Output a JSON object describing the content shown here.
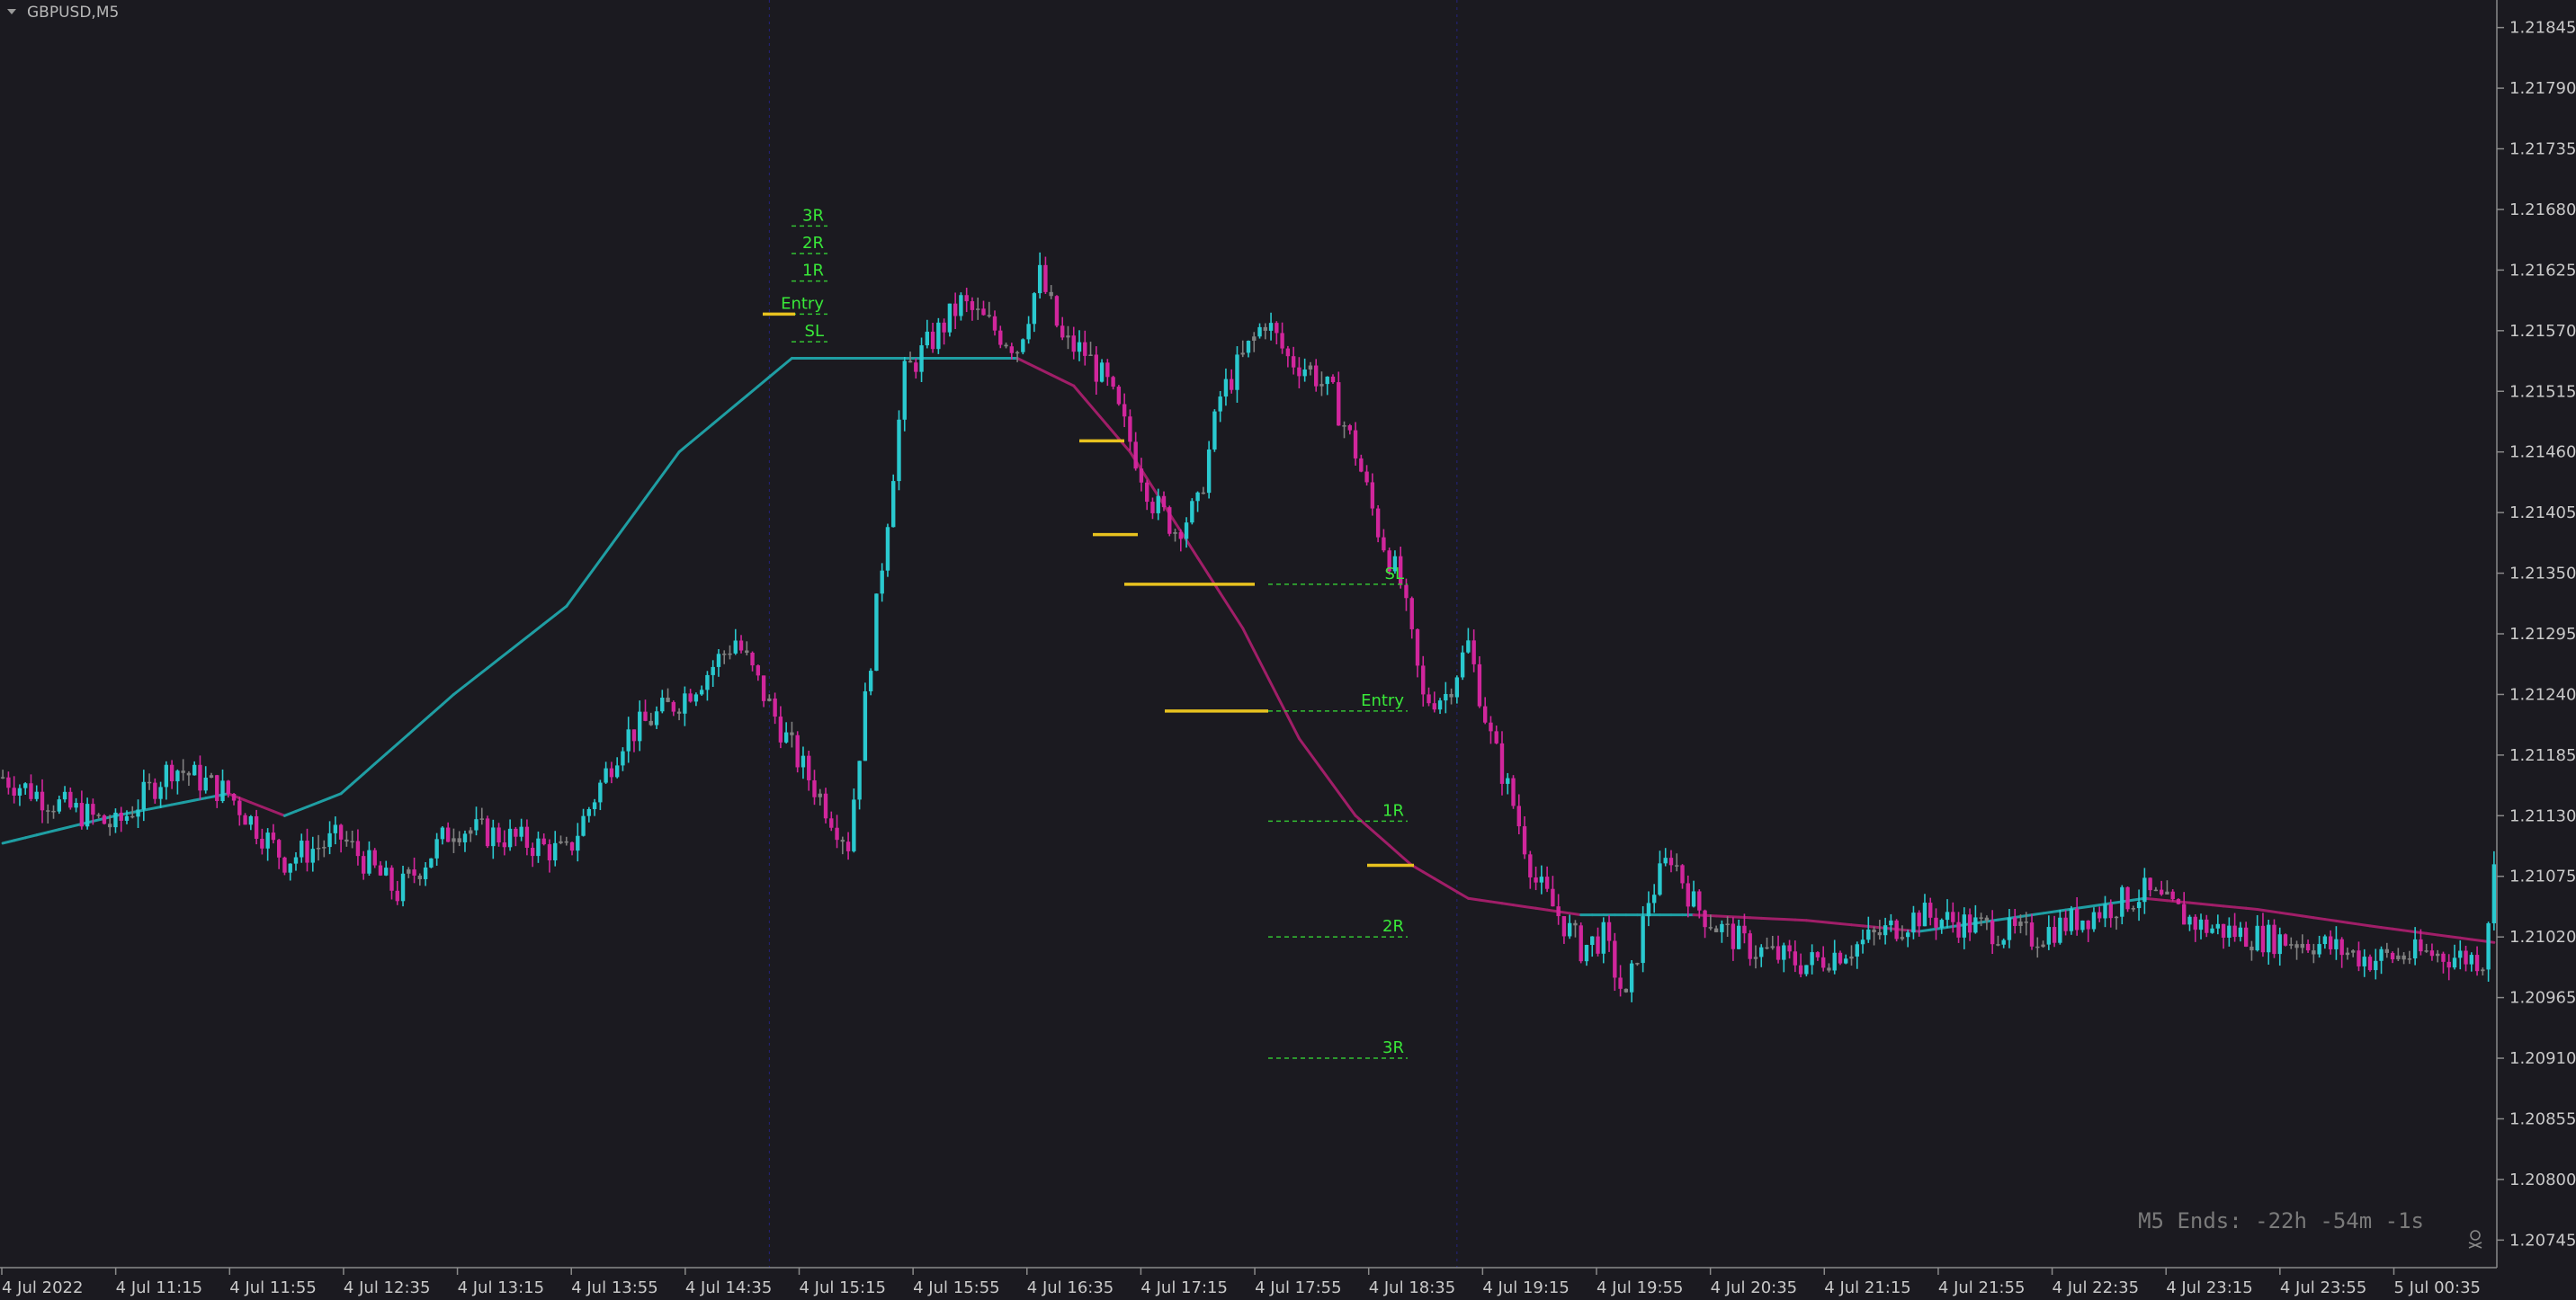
{
  "symbol": "GBPUSD,M5",
  "countdown": "M5 Ends: -22h -54m -1s",
  "colors": {
    "background": "#1b1a20",
    "bull": "#2ac9cf",
    "bear": "#d1269c",
    "doji": "#808080",
    "ma_up": "#1f9ea3",
    "ma_down": "#a01e68",
    "level_line": "#33c233",
    "level_label": "#39e839",
    "entry_mark": "#e8c21f",
    "axis_text": "#c9c9c9",
    "separator": "#2a2ad0"
  },
  "chart_data": {
    "type": "candlestick",
    "title": "GBPUSD,M5",
    "y_ticks": [
      "1.21845",
      "1.21790",
      "1.21735",
      "1.21680",
      "1.21625",
      "1.21570",
      "1.21515",
      "1.21460",
      "1.21405",
      "1.21350",
      "1.21295",
      "1.21240",
      "1.21185",
      "1.21130",
      "1.21075",
      "1.21020",
      "1.20965",
      "1.20910",
      "1.20855",
      "1.20800",
      "1.20745"
    ],
    "ylim": [
      1.2072,
      1.2187
    ],
    "x_ticks": [
      "4 Jul 2022",
      "4 Jul 11:15",
      "4 Jul 11:55",
      "4 Jul 12:35",
      "4 Jul 13:15",
      "4 Jul 13:55",
      "4 Jul 14:35",
      "4 Jul 15:15",
      "4 Jul 15:55",
      "4 Jul 16:35",
      "4 Jul 17:15",
      "4 Jul 17:55",
      "4 Jul 18:35",
      "4 Jul 19:15",
      "4 Jul 19:55",
      "4 Jul 20:35",
      "4 Jul 21:15",
      "4 Jul 21:55",
      "4 Jul 22:35",
      "4 Jul 23:15",
      "4 Jul 23:55",
      "5 Jul 00:35"
    ],
    "grid": false,
    "candle_anchors": [
      [
        0,
        1.21165
      ],
      [
        10,
        1.2114
      ],
      [
        20,
        1.2112
      ],
      [
        30,
        1.21175
      ],
      [
        40,
        1.2115
      ],
      [
        50,
        1.2109
      ],
      [
        60,
        1.2111
      ],
      [
        70,
        1.2106
      ],
      [
        80,
        1.2112
      ],
      [
        90,
        1.2111
      ],
      [
        100,
        1.21095
      ],
      [
        110,
        1.212
      ],
      [
        120,
        1.21235
      ],
      [
        125,
        1.2126
      ],
      [
        130,
        1.2129
      ],
      [
        140,
        1.2119
      ],
      [
        150,
        1.21105
      ],
      [
        160,
        1.2153
      ],
      [
        170,
        1.21595
      ],
      [
        180,
        1.21555
      ],
      [
        184,
        1.2162
      ],
      [
        188,
        1.2156
      ],
      [
        192,
        1.2155
      ],
      [
        196,
        1.2152
      ],
      [
        200,
        1.2147
      ],
      [
        204,
        1.21415
      ],
      [
        208,
        1.2139
      ],
      [
        212,
        1.2141
      ],
      [
        216,
        1.2151
      ],
      [
        220,
        1.21545
      ],
      [
        224,
        1.2158
      ],
      [
        228,
        1.21545
      ],
      [
        232,
        1.21535
      ],
      [
        236,
        1.2151
      ],
      [
        240,
        1.2146
      ],
      [
        244,
        1.2139
      ],
      [
        248,
        1.2134
      ],
      [
        252,
        1.21235
      ],
      [
        256,
        1.2124
      ],
      [
        260,
        1.21285
      ],
      [
        264,
        1.212
      ],
      [
        268,
        1.2114
      ],
      [
        272,
        1.2107
      ],
      [
        276,
        1.2104
      ],
      [
        280,
        1.2101
      ],
      [
        284,
        1.2102
      ],
      [
        288,
        1.2096
      ],
      [
        292,
        1.21055
      ],
      [
        296,
        1.21095
      ],
      [
        300,
        1.2105
      ],
      [
        304,
        1.2103
      ],
      [
        310,
        1.2101
      ],
      [
        320,
        1.20995
      ],
      [
        330,
        1.21015
      ],
      [
        340,
        1.2104
      ],
      [
        350,
        1.2103
      ],
      [
        360,
        1.2102
      ],
      [
        370,
        1.2104
      ],
      [
        380,
        1.2106
      ],
      [
        390,
        1.2103
      ],
      [
        400,
        1.2102
      ],
      [
        410,
        1.21015
      ],
      [
        420,
        1.21
      ],
      [
        430,
        1.21005
      ],
      [
        440,
        1.21
      ],
      [
        442,
        1.2108
      ]
    ],
    "moving_average": [
      [
        0,
        1.21105
      ],
      [
        20,
        1.2113
      ],
      [
        40,
        1.2115
      ],
      [
        50,
        1.2113
      ],
      [
        60,
        1.2115
      ],
      [
        80,
        1.2124
      ],
      [
        100,
        1.2132
      ],
      [
        120,
        1.2146
      ],
      [
        140,
        1.21545
      ],
      [
        160,
        1.21545
      ],
      [
        180,
        1.21545
      ],
      [
        190,
        1.2152
      ],
      [
        200,
        1.2146
      ],
      [
        210,
        1.2138
      ],
      [
        220,
        1.213
      ],
      [
        230,
        1.212
      ],
      [
        240,
        1.2113
      ],
      [
        250,
        1.21085
      ],
      [
        260,
        1.21055
      ],
      [
        280,
        1.2104
      ],
      [
        300,
        1.2104
      ],
      [
        320,
        1.21035
      ],
      [
        340,
        1.21025
      ],
      [
        360,
        1.2104
      ],
      [
        380,
        1.21055
      ],
      [
        400,
        1.21045
      ],
      [
        420,
        1.2103
      ],
      [
        442,
        1.21015
      ]
    ],
    "vertical_separators": [
      136,
      258
    ],
    "trade_setups": [
      {
        "levels": [
          {
            "label": "3R",
            "price": 1.21665
          },
          {
            "label": "2R",
            "price": 1.2164
          },
          {
            "label": "1R",
            "price": 1.21615
          },
          {
            "label": "Entry",
            "price": 1.21585
          },
          {
            "label": "SL",
            "price": 1.2156
          }
        ]
      },
      {
        "levels": [
          {
            "label": "SL",
            "price": 1.2134
          },
          {
            "label": "Entry",
            "price": 1.21225
          },
          {
            "label": "1R",
            "price": 1.21125
          },
          {
            "label": "2R",
            "price": 1.2102
          },
          {
            "label": "3R",
            "price": 1.2091
          }
        ]
      }
    ],
    "entry_markers": [
      {
        "price": 1.21585
      },
      {
        "price": 1.2147
      },
      {
        "price": 1.21385
      },
      {
        "price": 1.2134
      },
      {
        "price": 1.21225
      },
      {
        "price": 1.21085
      }
    ]
  }
}
